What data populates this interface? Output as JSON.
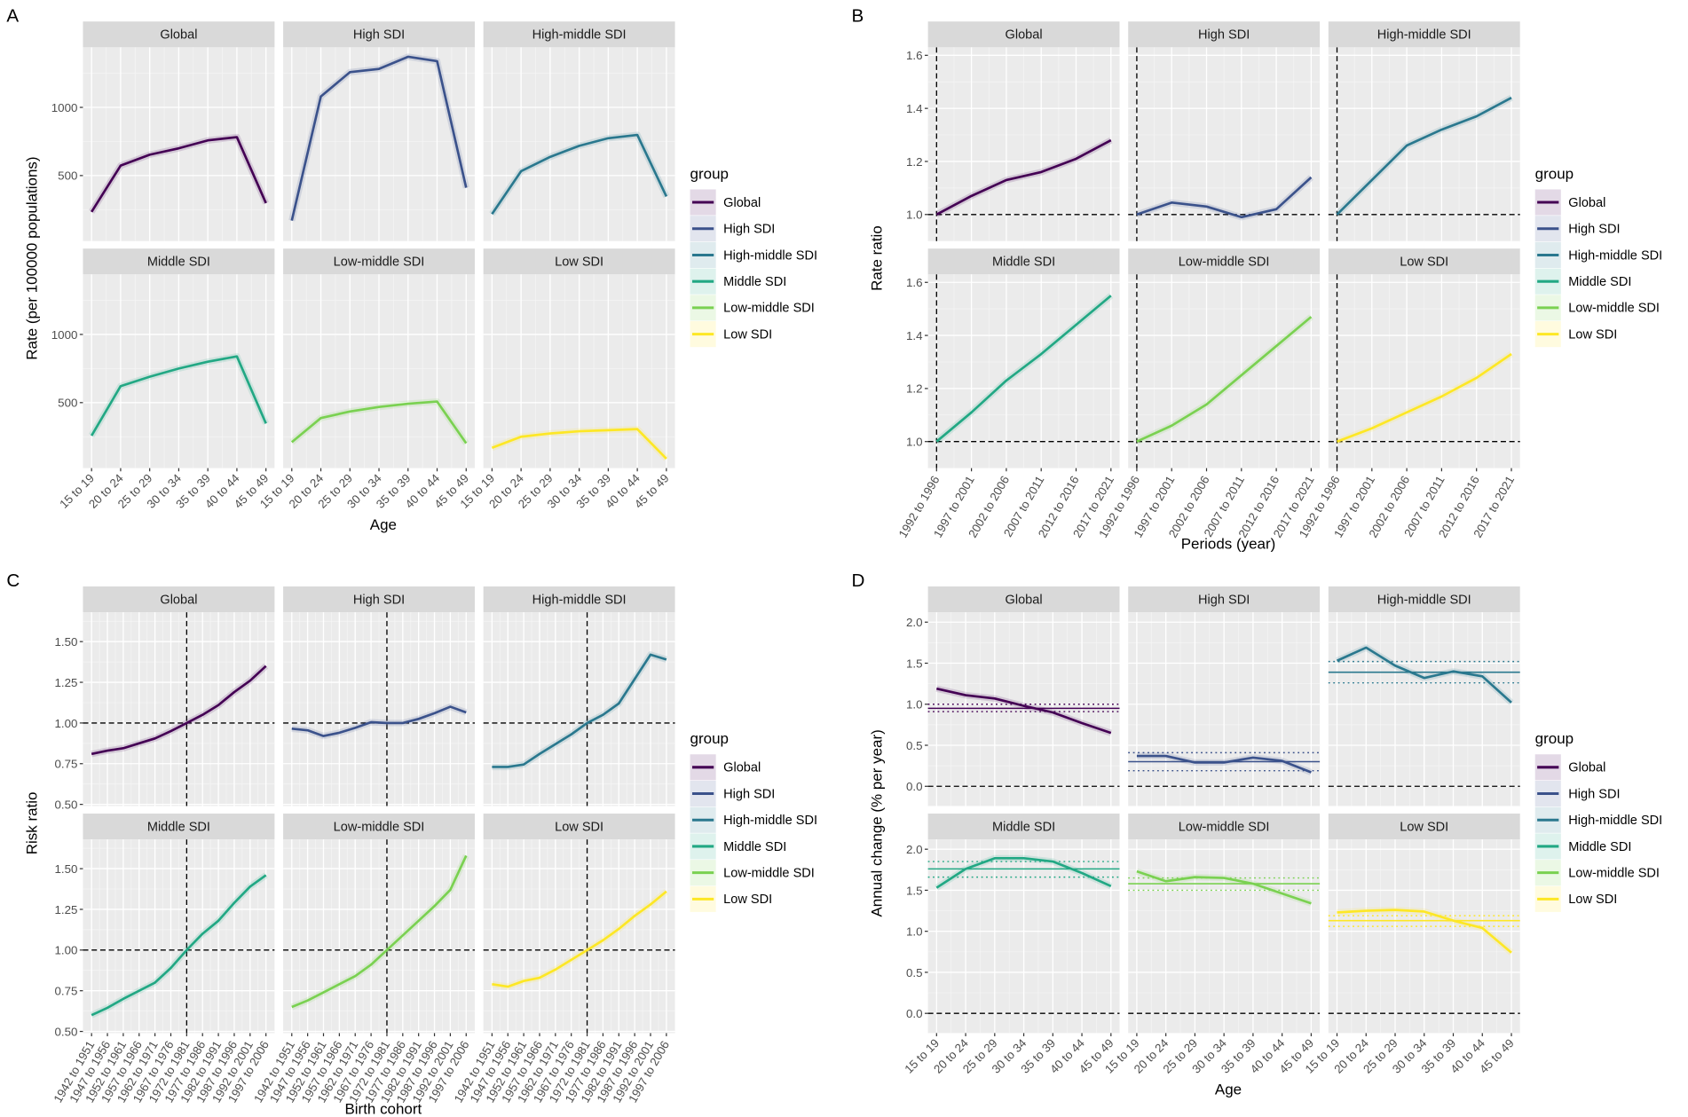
{
  "legend": {
    "title": "group",
    "groups": [
      "Global",
      "High SDI",
      "High-middle SDI",
      "Middle SDI",
      "Low-middle SDI",
      "Low SDI"
    ],
    "colors": [
      "#440154",
      "#3B528B",
      "#2A788E",
      "#22A884",
      "#7AD151",
      "#FDE725"
    ]
  },
  "chart_data": [
    {
      "panel": "A",
      "type": "line",
      "xlabel": "Age",
      "ylabel": "Rate (per 100000 populations)",
      "categories": [
        "15 to 19",
        "20 to 24",
        "25 to 29",
        "30 to 34",
        "35 to 39",
        "40 to 44",
        "45 to 49"
      ],
      "ylim": [
        20,
        1440
      ],
      "yticks": [
        500,
        1000
      ],
      "ytick_labels": [
        "500",
        "1000"
      ],
      "series": [
        {
          "name": "Global",
          "values": [
            234,
            573,
            653,
            700,
            758,
            782,
            298
          ]
        },
        {
          "name": "High SDI",
          "values": [
            170,
            1080,
            1258,
            1282,
            1371,
            1339,
            411
          ]
        },
        {
          "name": "High-middle SDI",
          "values": [
            218,
            532,
            637,
            718,
            774,
            798,
            347
          ]
        },
        {
          "name": "Middle SDI",
          "values": [
            258,
            621,
            690,
            750,
            800,
            839,
            347
          ]
        },
        {
          "name": "Low-middle SDI",
          "values": [
            210,
            387,
            435,
            468,
            492,
            508,
            202
          ]
        },
        {
          "name": "Low SDI",
          "values": [
            169,
            250,
            274,
            290,
            298,
            306,
            89
          ]
        }
      ]
    },
    {
      "panel": "B",
      "type": "line",
      "xlabel": "Periods (year)",
      "ylabel": "Rate ratio",
      "categories": [
        "1992 to 1996",
        "1997 to 2001",
        "2002 to 2006",
        "2007 to 2011",
        "2012 to 2016",
        "2017 to 2021"
      ],
      "ylim": [
        0.9,
        1.63
      ],
      "yticks": [
        1.0,
        1.2,
        1.4,
        1.6
      ],
      "ytick_labels": [
        "1.0",
        "1.2",
        "1.4",
        "1.6"
      ],
      "reference_y": 1.0,
      "reference_x_index": 0,
      "series": [
        {
          "name": "Global",
          "values": [
            1.0,
            1.07,
            1.13,
            1.16,
            1.21,
            1.28
          ]
        },
        {
          "name": "High SDI",
          "values": [
            1.0,
            1.045,
            1.03,
            0.99,
            1.02,
            1.14
          ]
        },
        {
          "name": "High-middle SDI",
          "values": [
            1.0,
            1.13,
            1.26,
            1.32,
            1.37,
            1.44
          ]
        },
        {
          "name": "Middle SDI",
          "values": [
            1.0,
            1.11,
            1.23,
            1.33,
            1.44,
            1.55
          ]
        },
        {
          "name": "Low-middle SDI",
          "values": [
            1.0,
            1.06,
            1.14,
            1.25,
            1.36,
            1.47
          ]
        },
        {
          "name": "Low SDI",
          "values": [
            1.0,
            1.05,
            1.11,
            1.17,
            1.24,
            1.33
          ]
        }
      ]
    },
    {
      "panel": "C",
      "type": "line",
      "xlabel": "Birth cohort",
      "ylabel": "Risk ratio",
      "categories": [
        "1942 to 1951",
        "1947 to 1956",
        "1952 to 1961",
        "1957 to 1966",
        "1962 to 1971",
        "1967 to 1976",
        "1972 to 1981",
        "1977 to 1986",
        "1982 to 1991",
        "1987 to 1996",
        "1992 to 2001",
        "1997 to 2006"
      ],
      "ylim": [
        0.49,
        1.68
      ],
      "yticks": [
        0.5,
        0.75,
        1.0,
        1.25,
        1.5
      ],
      "ytick_labels": [
        "0.50",
        "0.75",
        "1.00",
        "1.25",
        "1.50"
      ],
      "reference_y": 1.0,
      "reference_x_index": 6,
      "series": [
        {
          "name": "Global",
          "values": [
            0.81,
            0.83,
            0.845,
            0.875,
            0.905,
            0.95,
            1.0,
            1.05,
            1.11,
            1.19,
            1.26,
            1.35
          ]
        },
        {
          "name": "High SDI",
          "values": [
            0.965,
            0.955,
            0.92,
            0.94,
            0.97,
            1.005,
            1.0,
            1.0,
            1.025,
            1.06,
            1.1,
            1.065
          ]
        },
        {
          "name": "High-middle SDI",
          "values": [
            0.73,
            0.73,
            0.745,
            0.81,
            0.87,
            0.93,
            1.0,
            1.05,
            1.12,
            1.27,
            1.42,
            1.39
          ]
        },
        {
          "name": "Middle SDI",
          "values": [
            0.6,
            0.645,
            0.7,
            0.75,
            0.8,
            0.89,
            1.0,
            1.1,
            1.18,
            1.29,
            1.39,
            1.46
          ]
        },
        {
          "name": "Low-middle SDI",
          "values": [
            0.65,
            0.69,
            0.74,
            0.79,
            0.84,
            0.91,
            1.0,
            1.09,
            1.18,
            1.27,
            1.37,
            1.58
          ]
        },
        {
          "name": "Low SDI",
          "values": [
            0.79,
            0.775,
            0.81,
            0.83,
            0.88,
            0.94,
            1.0,
            1.06,
            1.13,
            1.21,
            1.28,
            1.36
          ]
        }
      ]
    },
    {
      "panel": "D",
      "type": "line",
      "xlabel": "Age",
      "ylabel": "Annual change (% per year)",
      "categories": [
        "15 to 19",
        "20 to 24",
        "25 to 29",
        "30 to 34",
        "35 to 39",
        "40 to 44",
        "45 to 49"
      ],
      "ylim": [
        -0.24,
        2.12
      ],
      "yticks": [
        0.0,
        0.5,
        1.0,
        1.5,
        2.0
      ],
      "ytick_labels": [
        "0.0",
        "0.5",
        "1.0",
        "1.5",
        "2.0"
      ],
      "reference_y": 0.0,
      "series": [
        {
          "name": "Global",
          "values": [
            1.19,
            1.11,
            1.07,
            0.98,
            0.9,
            0.77,
            0.65
          ],
          "net_drift": 0.95,
          "net_drift_ci": [
            0.91,
            1.0
          ]
        },
        {
          "name": "High SDI",
          "values": [
            0.37,
            0.37,
            0.29,
            0.29,
            0.35,
            0.31,
            0.17
          ],
          "net_drift": 0.3,
          "net_drift_ci": [
            0.19,
            0.41
          ]
        },
        {
          "name": "High-middle SDI",
          "values": [
            1.53,
            1.69,
            1.47,
            1.32,
            1.4,
            1.34,
            1.02
          ],
          "net_drift": 1.39,
          "net_drift_ci": [
            1.26,
            1.52
          ]
        },
        {
          "name": "Middle SDI",
          "values": [
            1.53,
            1.76,
            1.89,
            1.89,
            1.85,
            1.71,
            1.55
          ],
          "net_drift": 1.76,
          "net_drift_ci": [
            1.66,
            1.85
          ]
        },
        {
          "name": "Low-middle SDI",
          "values": [
            1.73,
            1.61,
            1.66,
            1.65,
            1.58,
            1.46,
            1.34
          ],
          "net_drift": 1.58,
          "net_drift_ci": [
            1.5,
            1.65
          ]
        },
        {
          "name": "Low SDI",
          "values": [
            1.23,
            1.25,
            1.26,
            1.24,
            1.13,
            1.04,
            0.74
          ],
          "net_drift": 1.13,
          "net_drift_ci": [
            1.06,
            1.19
          ]
        }
      ]
    }
  ]
}
